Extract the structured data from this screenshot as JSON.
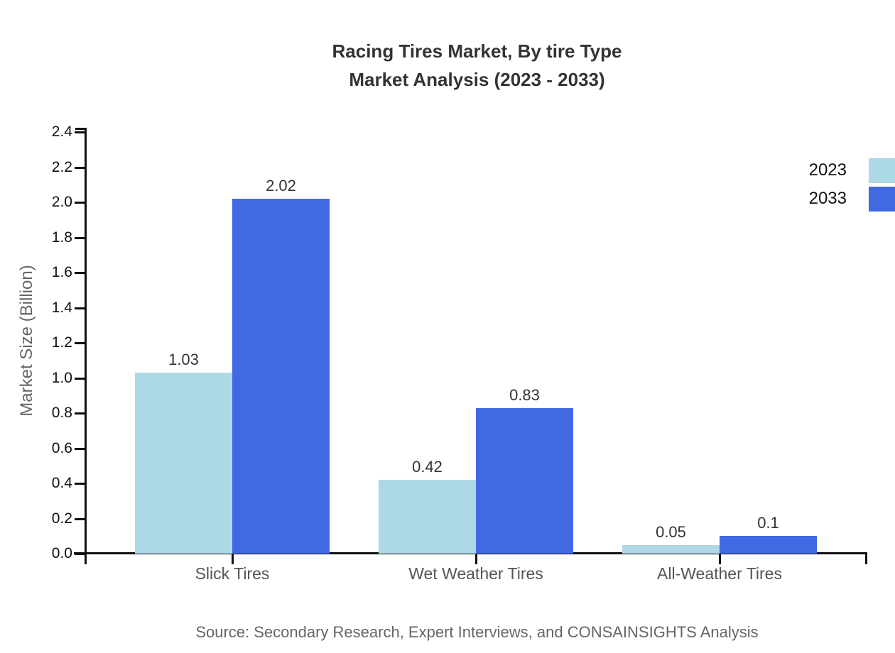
{
  "title": {
    "line1": "Racing Tires Market, By tire Type",
    "line2": "Market Analysis (2023 - 2033)"
  },
  "chart_data": {
    "type": "bar",
    "categories": [
      "Slick Tires",
      "Wet Weather Tires",
      "All-Weather Tires"
    ],
    "series": [
      {
        "name": "2023",
        "color": "#add8e6",
        "values": [
          1.03,
          0.42,
          0.05
        ]
      },
      {
        "name": "2033",
        "color": "#4169e1",
        "values": [
          2.02,
          0.83,
          0.1
        ]
      }
    ],
    "value_labels": [
      [
        "1.03",
        "0.42",
        "0.05"
      ],
      [
        "2.02",
        "0.83",
        "0.1"
      ]
    ],
    "ylabel": "Market Size (Billion)",
    "ylim": [
      0,
      2.4
    ],
    "ytick_step": 0.2,
    "ytick_labels": [
      "0.0",
      "0.2",
      "0.4",
      "0.6",
      "0.8",
      "1.0",
      "1.2",
      "1.4",
      "1.6",
      "1.8",
      "2.0",
      "2.2",
      "2.4"
    ],
    "legend_position": "top-right",
    "grid": false,
    "data_labels": true,
    "axis_color": "#111111"
  },
  "source": "Source: Secondary Research, Expert Interviews, and CONSAINSIGHTS Analysis"
}
